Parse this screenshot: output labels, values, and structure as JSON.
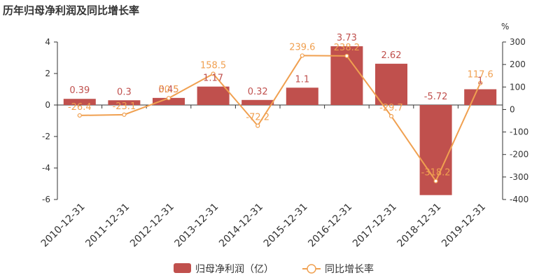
{
  "title": "历年归母净利润及同比增长率",
  "chart_data": {
    "type": "bar",
    "categories": [
      "2010-12-31",
      "2011-12-31",
      "2012-12-31",
      "2013-12-31",
      "2014-12-31",
      "2015-12-31",
      "2016-12-31",
      "2017-12-31",
      "2018-12-31",
      "2019-12-31"
    ],
    "series": [
      {
        "name": "归母净利润（亿）",
        "type": "bar",
        "axis": "left",
        "color": "#c0504d",
        "values": [
          0.39,
          0.3,
          0.45,
          1.17,
          0.32,
          1.1,
          3.73,
          2.62,
          -5.72,
          1
        ],
        "labels": [
          "0.39",
          "0.3",
          "0.45",
          "1.17",
          "0.32",
          "1.1",
          "3.73",
          "2.62",
          "-5.72",
          "1"
        ]
      },
      {
        "name": "同比增长率",
        "type": "line",
        "axis": "right",
        "color": "#f0a050",
        "values": [
          -26.4,
          -23.1,
          50.5,
          158.5,
          -72.2,
          239.6,
          238.2,
          -29.7,
          -318.2,
          117.6
        ],
        "labels": [
          "-26.4",
          "-23.1",
          "50.5",
          "158.5",
          "-72.2",
          "239.6",
          "238.2",
          "-29.7",
          "-318.2",
          "117.6"
        ]
      }
    ],
    "y_left": {
      "range": [
        -6,
        4
      ],
      "ticks": [
        "4",
        "2",
        "0",
        "-2",
        "-4",
        "-6"
      ]
    },
    "y_right": {
      "range": [
        -400,
        300
      ],
      "unit": "%",
      "ticks": [
        "300",
        "200",
        "100",
        "0",
        "-100",
        "-200",
        "-300",
        "-400"
      ]
    },
    "legend_position": "bottom-center",
    "grid": false
  }
}
